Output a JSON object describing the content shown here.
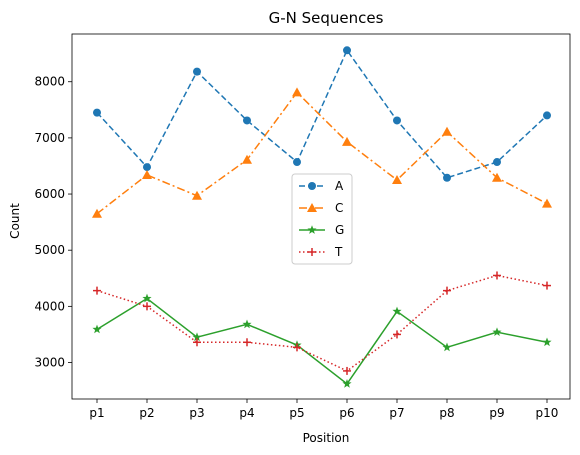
{
  "chart_data": {
    "type": "line",
    "title": "G-N Sequences",
    "xlabel": "Position",
    "ylabel": "Count",
    "categories": [
      "p1",
      "p2",
      "p3",
      "p4",
      "p5",
      "p6",
      "p7",
      "p8",
      "p9",
      "p10"
    ],
    "ylim": [
      2350,
      8850
    ],
    "yticks": [
      3000,
      4000,
      5000,
      6000,
      7000,
      8000
    ],
    "grid": false,
    "legend_position": "center",
    "series": [
      {
        "name": "A",
        "color": "#1f77b4",
        "linestyle": "dashed",
        "marker": "circle",
        "values": [
          7450,
          6480,
          8180,
          7310,
          6570,
          8560,
          7310,
          6290,
          6570,
          7400
        ]
      },
      {
        "name": "C",
        "color": "#ff7f0e",
        "linestyle": "dashdot",
        "marker": "triangle",
        "values": [
          5650,
          6340,
          5970,
          6610,
          7810,
          6930,
          6250,
          7110,
          6290,
          5830
        ]
      },
      {
        "name": "G",
        "color": "#2ca02c",
        "linestyle": "solid",
        "marker": "star",
        "values": [
          3590,
          4140,
          3450,
          3680,
          3310,
          2620,
          3910,
          3270,
          3540,
          3360
        ]
      },
      {
        "name": "T",
        "color": "#d62728",
        "linestyle": "dotted",
        "marker": "plus",
        "values": [
          4280,
          4000,
          3360,
          3360,
          3270,
          2850,
          3500,
          4280,
          4550,
          4370
        ]
      }
    ]
  }
}
